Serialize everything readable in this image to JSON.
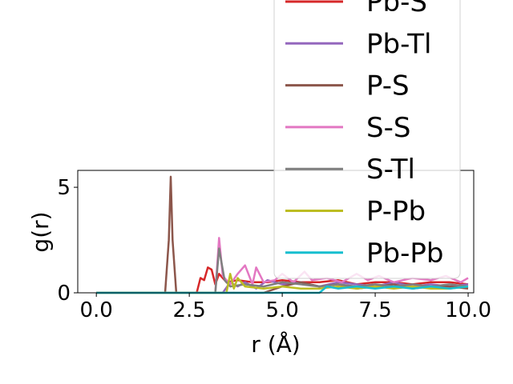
{
  "chart_data": {
    "type": "line",
    "title": "",
    "xlabel": "r (Å)",
    "ylabel": "g(r)",
    "xlim": [
      -0.5,
      10.15
    ],
    "ylim": [
      0,
      5.8
    ],
    "xticks": [
      "0.0",
      "2.5",
      "5.0",
      "7.5",
      "10.0"
    ],
    "xtick_values": [
      0,
      2.5,
      5,
      7.5,
      10
    ],
    "yticks": [
      "0",
      "5"
    ],
    "ytick_values": [
      0,
      5
    ],
    "grid": false,
    "legend_position": "upper-right",
    "series": [
      {
        "name": "Pb-S",
        "color": "#d62728",
        "x": [
          0,
          2.7,
          2.8,
          2.9,
          3.0,
          3.1,
          3.2,
          3.3,
          3.5,
          3.8,
          4.2,
          4.6,
          5.0,
          5.5,
          6.0,
          6.5,
          7.0,
          7.5,
          8.0,
          8.5,
          9.0,
          9.5,
          10.0
        ],
        "y": [
          0,
          0,
          0.7,
          0.6,
          1.2,
          1.1,
          0.4,
          0.9,
          0.5,
          0.6,
          0.5,
          0.5,
          0.6,
          0.5,
          0.5,
          0.6,
          0.4,
          0.5,
          0.5,
          0.4,
          0.5,
          0.5,
          0.4
        ]
      },
      {
        "name": "Pb-Tl",
        "color": "#9467bd",
        "x": [
          0,
          3.4,
          3.6,
          3.8,
          4.0,
          4.3,
          4.6,
          5.0,
          5.5,
          6.0,
          6.5,
          7.0,
          7.5,
          8.0,
          8.5,
          9.0,
          9.5,
          10.0
        ],
        "y": [
          0,
          0,
          0.5,
          0.3,
          0.5,
          0.2,
          0.6,
          0.4,
          0.5,
          0.3,
          0.5,
          0.4,
          0.3,
          0.5,
          0.3,
          0.4,
          0.3,
          0.4
        ]
      },
      {
        "name": "P-S",
        "color": "#8c564b",
        "x": [
          0,
          1.85,
          1.95,
          2.0,
          2.05,
          2.15,
          4.5,
          5.0,
          5.5,
          6.0,
          6.5,
          7.0,
          7.5,
          8.0,
          8.5,
          9.0,
          9.5,
          10.0
        ],
        "y": [
          0,
          0,
          2.5,
          5.5,
          2.5,
          0,
          0,
          0.3,
          0.5,
          0.3,
          0.4,
          0.2,
          0.3,
          0.4,
          0.2,
          0.3,
          0.3,
          0.2
        ]
      },
      {
        "name": "S-S",
        "color": "#e377c2",
        "x": [
          0,
          3.2,
          3.3,
          3.4,
          3.6,
          3.8,
          4.0,
          4.2,
          4.3,
          4.5,
          4.8,
          5.0,
          5.3,
          5.6,
          5.8,
          6.2,
          6.6,
          7.0,
          7.3,
          7.6,
          8.0,
          8.5,
          9.0,
          9.4,
          9.8,
          10.0
        ],
        "y": [
          0,
          0,
          2.6,
          0.8,
          0.4,
          0.9,
          1.3,
          0.4,
          1.2,
          0.5,
          0.6,
          0.9,
          0.5,
          1.0,
          0.6,
          0.7,
          0.5,
          0.9,
          0.6,
          0.8,
          0.5,
          0.7,
          0.6,
          0.8,
          0.5,
          0.7
        ]
      },
      {
        "name": "S-Tl",
        "color": "#7f7f7f",
        "x": [
          0,
          3.2,
          3.3,
          3.45,
          3.6,
          4.0,
          4.5,
          5.0,
          5.5,
          6.0,
          6.5,
          7.0,
          7.5,
          8.0,
          8.5,
          9.0,
          9.5,
          10.0
        ],
        "y": [
          0,
          0,
          2.1,
          0.6,
          0.3,
          0.4,
          0.3,
          0.5,
          0.4,
          0.3,
          0.4,
          0.3,
          0.4,
          0.3,
          0.4,
          0.3,
          0.4,
          0.3
        ]
      },
      {
        "name": "P-Pb",
        "color": "#bcbd22",
        "x": [
          0,
          3.5,
          3.6,
          3.7,
          3.8,
          4.0,
          4.5,
          5.0,
          5.5,
          6.0,
          6.5,
          7.0,
          7.5,
          8.0,
          8.5,
          9.0,
          9.5,
          10.0
        ],
        "y": [
          0,
          0,
          0.9,
          0.2,
          0.7,
          0.3,
          0.2,
          0.3,
          0.2,
          0.2,
          0.3,
          0.2,
          0.3,
          0.2,
          0.3,
          0.2,
          0.2,
          0.3
        ]
      },
      {
        "name": "Pb-Pb",
        "color": "#17becf",
        "x": [
          0,
          6.0,
          6.2,
          6.5,
          7.0,
          7.5,
          8.0,
          8.5,
          9.0,
          9.5,
          10.0
        ],
        "y": [
          0,
          0,
          0.3,
          0.2,
          0.3,
          0.2,
          0.3,
          0.2,
          0.3,
          0.2,
          0.3
        ]
      }
    ]
  }
}
